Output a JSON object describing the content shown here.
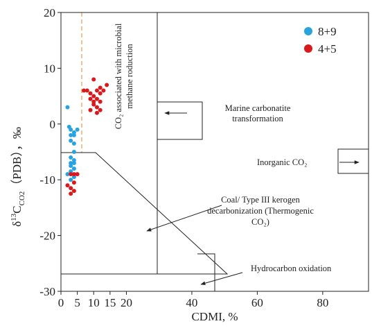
{
  "chart_data": {
    "type": "scatter",
    "x_label": "CDMI, %",
    "y_label_parts": [
      "δ",
      "13",
      "C",
      "CO2",
      "（PDB），‰"
    ],
    "xlim": [
      0,
      94
    ],
    "ylim": [
      -30,
      20
    ],
    "xticks": [
      0,
      5,
      10,
      15,
      20,
      40,
      60,
      80
    ],
    "yticks": [
      -30,
      -20,
      -10,
      0,
      10,
      20
    ],
    "legend": "upper right",
    "annotations": {
      "microbial": [
        "CO₂ associated with microbial",
        "methane roduction"
      ],
      "marine": [
        "Marine carbonatite",
        "transformation"
      ],
      "inorganic": [
        "Inorganic CO₂"
      ],
      "coal": [
        "Coal/ Type III kerogen",
        "decarbonization (Thermogenic",
        "CO₂)"
      ],
      "hydrocarbon": [
        "Hydrocarbon oxidation"
      ]
    },
    "series": [
      {
        "name": "8+9",
        "color": "#29a3e0",
        "x": [
          2,
          2.5,
          3,
          4,
          3,
          4,
          5,
          3,
          4,
          4,
          3,
          4,
          3,
          4,
          3,
          4,
          3,
          2,
          4,
          3
        ],
        "values": [
          3,
          -0.5,
          -1,
          -1.5,
          -2,
          -2,
          -1,
          -3,
          -3.5,
          -5,
          -6,
          -6.5,
          -7,
          -7,
          -7.5,
          -8,
          -8.5,
          -9,
          -9.5,
          -10
        ]
      },
      {
        "name": "4+5",
        "color": "#d9191c",
        "x": [
          8,
          9,
          10,
          10,
          11,
          12,
          12,
          13,
          14,
          9,
          10,
          11,
          12,
          10,
          11,
          9,
          11,
          12,
          7,
          3,
          4,
          4,
          2,
          3,
          4,
          3,
          5
        ],
        "values": [
          6,
          5.5,
          5,
          8,
          6,
          6.5,
          5.5,
          6,
          7,
          4.5,
          4,
          4.5,
          4,
          3.5,
          3,
          2.5,
          2,
          2.5,
          6,
          -9,
          -9,
          -10.5,
          -11,
          -11.5,
          -12,
          -12.5,
          -9
        ]
      }
    ]
  }
}
